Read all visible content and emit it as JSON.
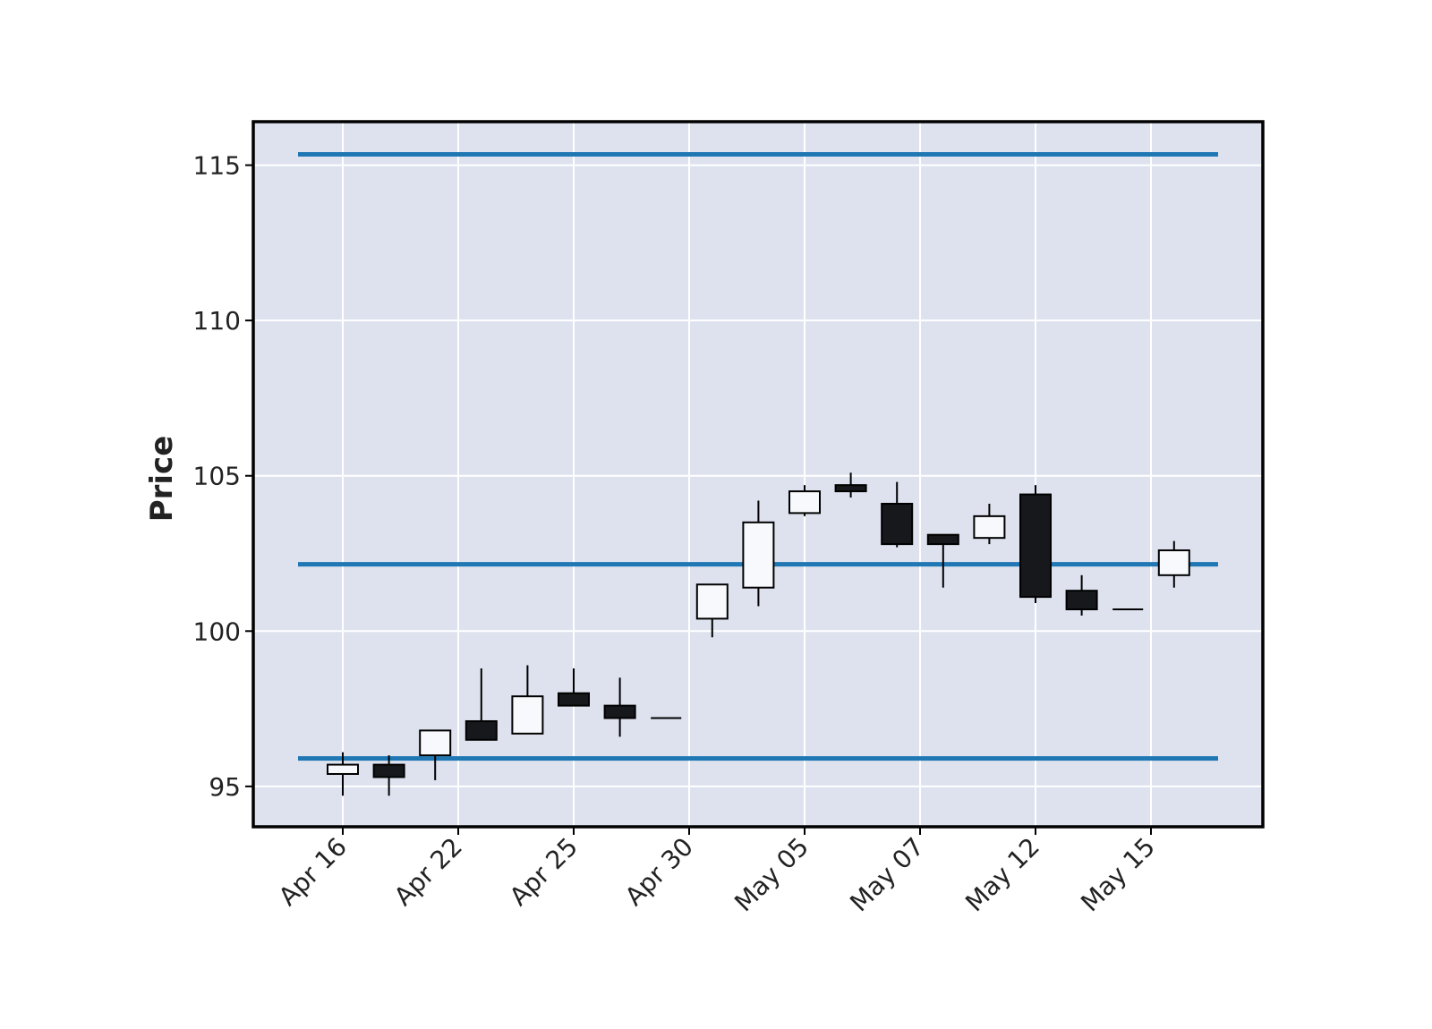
{
  "chart_data": {
    "type": "candlestick",
    "title": "",
    "xlabel": "",
    "ylabel": "Price",
    "ylim": [
      93.7,
      116.4
    ],
    "yticks": [
      95,
      100,
      105,
      110,
      115
    ],
    "x_tick_labels": [
      "Apr 16",
      "Apr 22",
      "Apr 25",
      "Apr 30",
      "May 05",
      "May 07",
      "May 12",
      "May 15"
    ],
    "x_tick_positions": [
      0,
      2.5,
      5,
      7.5,
      10,
      12.5,
      15,
      17.5
    ],
    "grid": true,
    "background": "#dde2ee",
    "up_color": "#f7f9fc",
    "down_color": "#17181b",
    "edge_color": "#000000",
    "candles": [
      {
        "x": 0,
        "open": 95.4,
        "high": 96.1,
        "low": 94.7,
        "close": 95.7
      },
      {
        "x": 1,
        "open": 95.7,
        "high": 96.0,
        "low": 94.7,
        "close": 95.3
      },
      {
        "x": 2,
        "open": 96.0,
        "high": 96.8,
        "low": 95.2,
        "close": 96.8
      },
      {
        "x": 3,
        "open": 97.1,
        "high": 98.8,
        "low": 96.5,
        "close": 96.5
      },
      {
        "x": 4,
        "open": 96.7,
        "high": 98.9,
        "low": 96.7,
        "close": 97.9
      },
      {
        "x": 5,
        "open": 98.0,
        "high": 98.8,
        "low": 97.6,
        "close": 97.6
      },
      {
        "x": 6,
        "open": 97.6,
        "high": 98.5,
        "low": 96.6,
        "close": 97.2
      },
      {
        "x": 7,
        "open": 97.2,
        "high": 97.2,
        "low": 97.2,
        "close": 97.2
      },
      {
        "x": 8,
        "open": 100.4,
        "high": 101.5,
        "low": 99.8,
        "close": 101.5
      },
      {
        "x": 9,
        "open": 101.4,
        "high": 104.2,
        "low": 100.8,
        "close": 103.5
      },
      {
        "x": 10,
        "open": 103.8,
        "high": 104.7,
        "low": 103.7,
        "close": 104.5
      },
      {
        "x": 11,
        "open": 104.7,
        "high": 105.1,
        "low": 104.3,
        "close": 104.5
      },
      {
        "x": 12,
        "open": 104.1,
        "high": 104.8,
        "low": 102.7,
        "close": 102.8
      },
      {
        "x": 13,
        "open": 103.1,
        "high": 103.1,
        "low": 101.4,
        "close": 102.8
      },
      {
        "x": 14,
        "open": 103.0,
        "high": 104.1,
        "low": 102.8,
        "close": 103.7
      },
      {
        "x": 15,
        "open": 104.4,
        "high": 104.7,
        "low": 100.9,
        "close": 101.1
      },
      {
        "x": 16,
        "open": 101.3,
        "high": 101.8,
        "low": 100.5,
        "close": 100.7
      },
      {
        "x": 17,
        "open": 100.7,
        "high": 100.7,
        "low": 100.7,
        "close": 100.7
      },
      {
        "x": 18,
        "open": 101.8,
        "high": 102.9,
        "low": 101.4,
        "close": 102.6
      }
    ],
    "hlines": {
      "color": "#1f77b4",
      "values": [
        115.35,
        102.15,
        95.9
      ]
    }
  }
}
